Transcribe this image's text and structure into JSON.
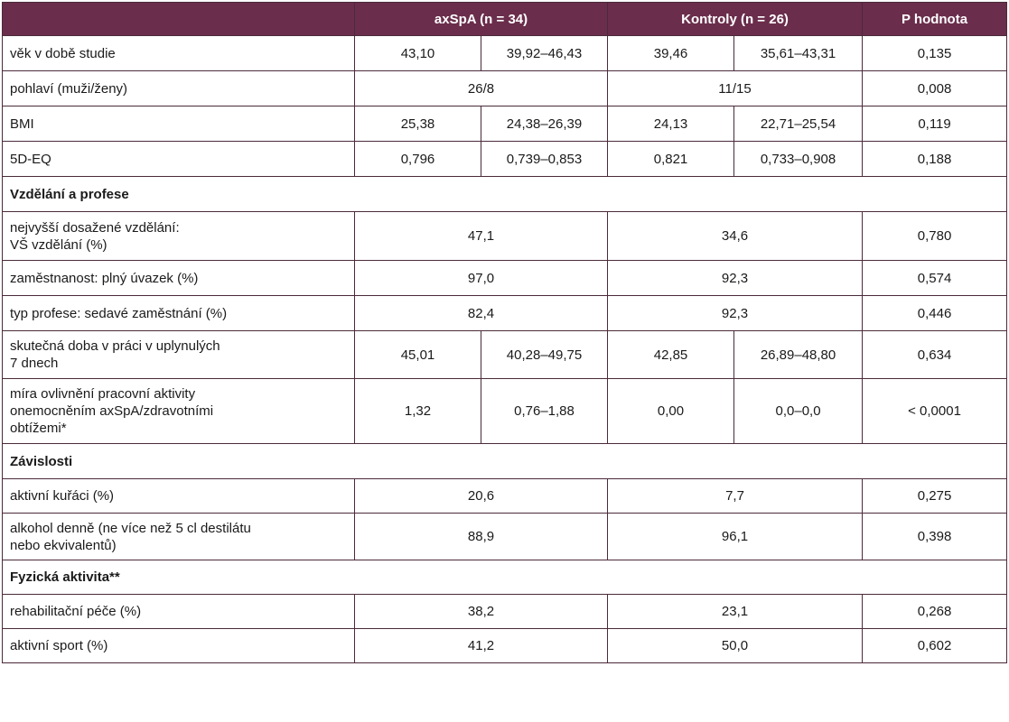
{
  "header": {
    "blank": "",
    "axspa": "axSpA (n = 34)",
    "kontroly": "Kontroly (n = 26)",
    "p": "P hodnota"
  },
  "rows": {
    "vek": {
      "label": "věk v době studie",
      "a1": "43,10",
      "a2": "39,92–46,43",
      "k1": "39,46",
      "k2": "35,61–43,31",
      "p": "0,135"
    },
    "pohlavi": {
      "label": "pohlaví (muži/ženy)",
      "a": "26/8",
      "k": "11/15",
      "p": "0,008"
    },
    "bmi": {
      "label": "BMI",
      "a1": "25,38",
      "a2": "24,38–26,39",
      "k1": "24,13",
      "k2": "22,71–25,54",
      "p": "0,119"
    },
    "eq": {
      "label": "5D-EQ",
      "a1": "0,796",
      "a2": "0,739–0,853",
      "k1": "0,821",
      "k2": "0,733–0,908",
      "p": "0,188"
    },
    "sec1": {
      "label": "Vzdělání a profese"
    },
    "vzdelani": {
      "label1": "nejvyšší dosažené vzdělání:",
      "label2": "VŠ vzdělání (%)",
      "a": "47,1",
      "k": "34,6",
      "p": "0,780"
    },
    "zamestnanost": {
      "label": "zaměstnanost: plný úvazek (%)",
      "a": "97,0",
      "k": "92,3",
      "p": "0,574"
    },
    "typ": {
      "label": "typ profese: sedavé zaměstnání (%)",
      "a": "82,4",
      "k": "92,3",
      "p": "0,446"
    },
    "doba": {
      "label1": "skutečná doba v práci v uplynulých",
      "label2": "7 dnech",
      "a1": "45,01",
      "a2": "40,28–49,75",
      "k1": "42,85",
      "k2": "26,89–48,80",
      "p": "0,634"
    },
    "mira": {
      "label1": "míra ovlivnění pracovní aktivity",
      "label2": "onemocněním axSpA/zdravotními",
      "label3": "obtížemi*",
      "a1": "1,32",
      "a2": "0,76–1,88",
      "k1": "0,00",
      "k2": "0,0–0,0",
      "p": "< 0,0001"
    },
    "sec2": {
      "label": "Závislosti"
    },
    "kuraci": {
      "label": "aktivní kuřáci (%)",
      "a": "20,6",
      "k": "7,7",
      "p": "0,275"
    },
    "alkohol": {
      "label1": "alkohol denně (ne více než 5 cl destilátu",
      "label2": "nebo ekvivalentů)",
      "a": "88,9",
      "k": "96,1",
      "p": "0,398"
    },
    "sec3": {
      "label": "Fyzická aktivita**"
    },
    "rehab": {
      "label": "rehabilitační péče (%)",
      "a": "38,2",
      "k": "23,1",
      "p": "0,268"
    },
    "sport": {
      "label": "aktivní sport (%)",
      "a": "41,2",
      "k": "50,0",
      "p": "0,602"
    }
  },
  "colors": {
    "header_bg": "#6b2d4c",
    "header_text": "#ffffff",
    "border": "#4a2a3a"
  }
}
